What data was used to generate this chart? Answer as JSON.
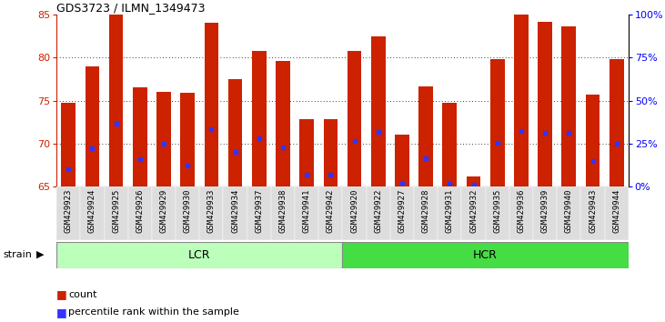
{
  "title": "GDS3723 / ILMN_1349473",
  "samples": [
    "GSM429923",
    "GSM429924",
    "GSM429925",
    "GSM429926",
    "GSM429929",
    "GSM429930",
    "GSM429933",
    "GSM429934",
    "GSM429937",
    "GSM429938",
    "GSM429941",
    "GSM429942",
    "GSM429920",
    "GSM429922",
    "GSM429927",
    "GSM429928",
    "GSM429931",
    "GSM429932",
    "GSM429935",
    "GSM429936",
    "GSM429939",
    "GSM429940",
    "GSM429943",
    "GSM429944"
  ],
  "counts": [
    74.8,
    79.0,
    85.0,
    76.5,
    76.0,
    75.9,
    84.0,
    77.5,
    80.8,
    79.6,
    72.8,
    72.8,
    80.8,
    82.5,
    71.1,
    76.6,
    74.7,
    66.2,
    79.8,
    85.0,
    84.2,
    83.6,
    75.7,
    79.8
  ],
  "percentile_ranks": [
    67.0,
    69.5,
    72.3,
    68.2,
    70.0,
    67.5,
    71.7,
    69.0,
    70.6,
    69.6,
    66.4,
    66.4,
    70.3,
    71.4,
    65.5,
    68.3,
    65.5,
    65.2,
    70.1,
    71.5,
    71.3,
    71.3,
    68.0,
    70.0
  ],
  "ylim": [
    65,
    85
  ],
  "yticks_left": [
    65,
    70,
    75,
    80,
    85
  ],
  "right_yticks_pct": [
    0,
    25,
    50,
    75,
    100
  ],
  "bar_color": "#CC2200",
  "marker_color": "#3333FF",
  "lcr_color": "#BBFFBB",
  "hcr_color": "#44DD44",
  "lcr_count": 12,
  "hcr_count": 12,
  "grid_yticks": [
    70,
    75,
    80
  ]
}
